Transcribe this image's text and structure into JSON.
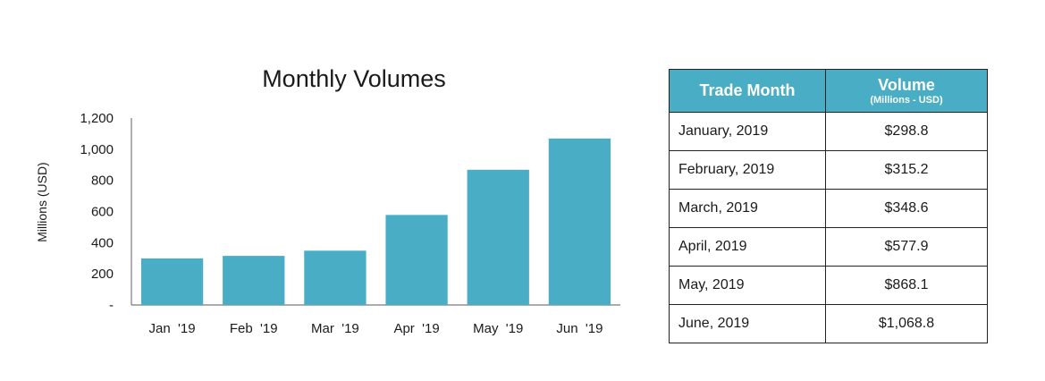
{
  "chart_data": {
    "type": "bar",
    "title": "Monthly Volumes",
    "ylabel": "Millions (USD)",
    "xlabel": "",
    "categories": [
      "Jan  '19",
      "Feb  '19",
      "Mar  '19",
      "Apr  '19",
      "May  '19",
      "Jun  '19"
    ],
    "values": [
      298.8,
      315.2,
      348.6,
      577.9,
      868.1,
      1068.8
    ],
    "ylim": [
      0,
      1200
    ],
    "yticks": [
      0,
      200,
      400,
      600,
      800,
      1000,
      1200
    ],
    "ytick_labels": [
      "-",
      "200",
      "400",
      "600",
      "800",
      "1,000",
      "1,200"
    ],
    "bar_color": "#4aadc6",
    "grid": false,
    "legend": "none"
  },
  "table": {
    "header_month": "Trade Month",
    "header_volume": "Volume",
    "header_volume_sub": "(Millions - USD)",
    "header_color": "#4aadc6",
    "rows": [
      {
        "month": "January, 2019",
        "volume": "$298.8"
      },
      {
        "month": "February, 2019",
        "volume": "$315.2"
      },
      {
        "month": "March, 2019",
        "volume": "$348.6"
      },
      {
        "month": "April, 2019",
        "volume": "$577.9"
      },
      {
        "month": "May, 2019",
        "volume": "$868.1"
      },
      {
        "month": "June, 2019",
        "volume": "$1,068.8"
      }
    ]
  }
}
